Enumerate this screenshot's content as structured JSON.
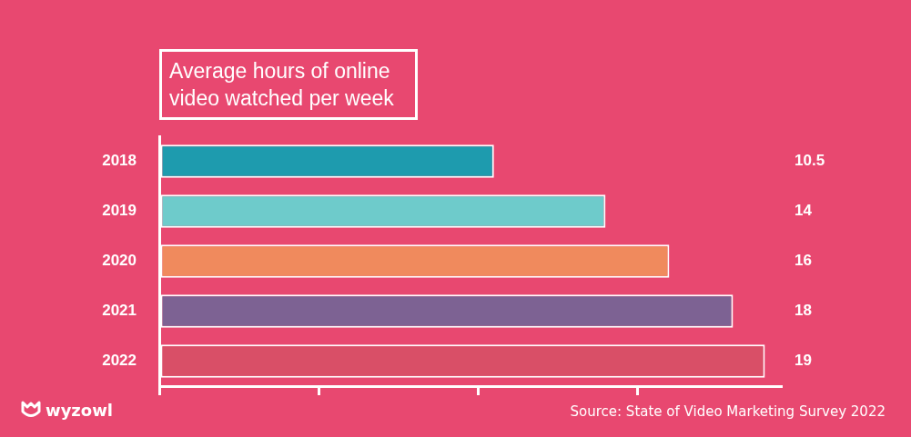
{
  "chart_data": {
    "type": "bar",
    "orientation": "horizontal",
    "title": "Average hours of online video watched per week",
    "categories": [
      "2018",
      "2019",
      "2020",
      "2021",
      "2022"
    ],
    "values": [
      10.5,
      14,
      16,
      18,
      19
    ],
    "colors": [
      "#1e9bae",
      "#6ecbcb",
      "#f08a5d",
      "#7d6293",
      "#d94f67"
    ],
    "xlim": [
      0,
      19.5
    ],
    "xticks": [
      0,
      5,
      10,
      15
    ],
    "grid": false,
    "data_labels": true,
    "tick_labels": "y",
    "annotations": [
      "Source: State of Video Marketing Survey 2022",
      "wyzowl"
    ]
  }
}
